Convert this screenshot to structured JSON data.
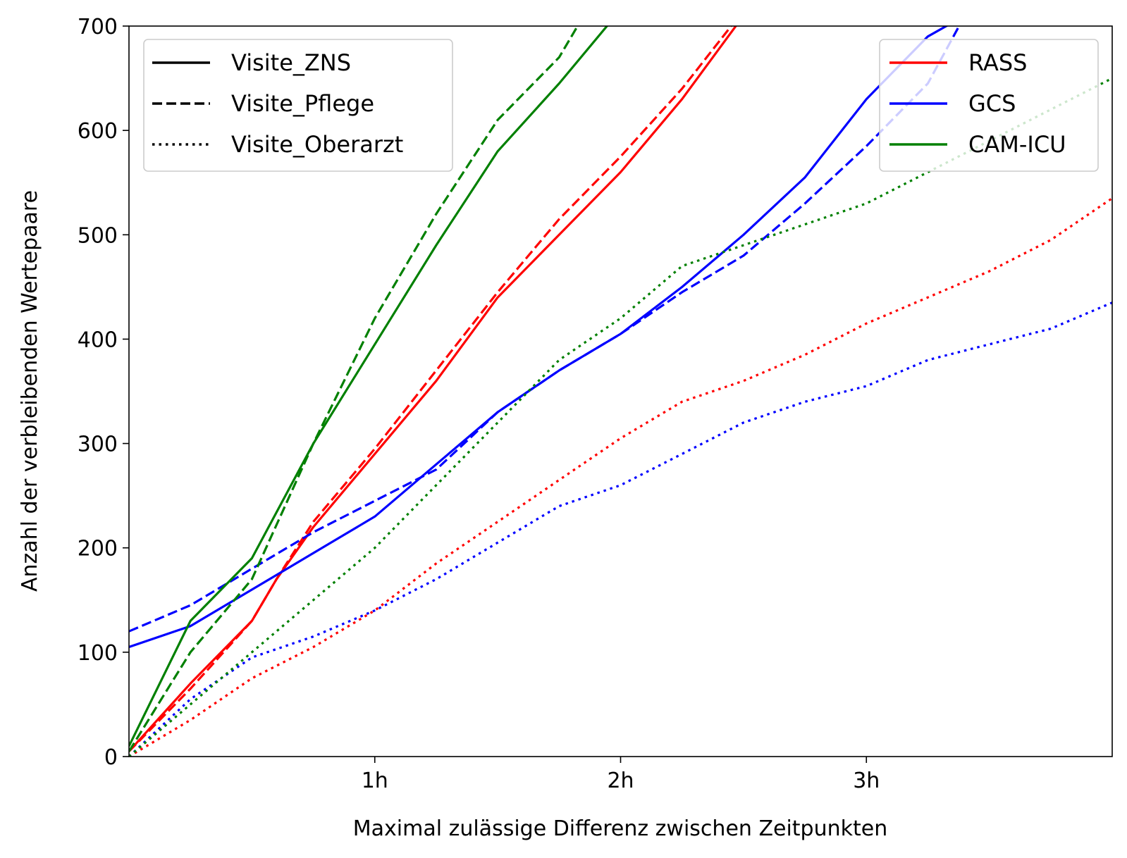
{
  "chart_data": {
    "type": "line",
    "xlabel": "Maximal zulässige Differenz zwischen Zeitpunkten",
    "ylabel": "Anzahl der verbleibenden Wertepaare",
    "xlim": [
      0,
      4
    ],
    "ylim": [
      0,
      700
    ],
    "x_unit": "hours",
    "xticks": [
      {
        "value": 1,
        "label": "1h"
      },
      {
        "value": 2,
        "label": "2h"
      },
      {
        "value": 3,
        "label": "3h"
      }
    ],
    "yticks": [
      0,
      100,
      200,
      300,
      400,
      500,
      600,
      700
    ],
    "grid": false,
    "legends": [
      {
        "placement": "top-left",
        "entries": [
          {
            "label": "Visite_ZNS",
            "dash": "solid"
          },
          {
            "label": "Visite_Pflege",
            "dash": "dashed"
          },
          {
            "label": "Visite_Oberarzt",
            "dash": "dotted"
          }
        ]
      },
      {
        "placement": "top-right",
        "entries": [
          {
            "label": "RASS",
            "color": "#ff0000"
          },
          {
            "label": "GCS",
            "color": "#0000ff"
          },
          {
            "label": "CAM-ICU",
            "color": "#008000"
          }
        ]
      }
    ],
    "series": [
      {
        "score": "RASS",
        "visit": "Visite_ZNS",
        "color": "#ff0000",
        "dash": "solid",
        "x": [
          0,
          0.25,
          0.5,
          0.6,
          0.75,
          1.0,
          1.25,
          1.5,
          1.75,
          2.0,
          2.25,
          2.5
        ],
        "y": [
          5,
          70,
          130,
          170,
          220,
          290,
          360,
          440,
          500,
          560,
          630,
          710
        ]
      },
      {
        "score": "RASS",
        "visit": "Visite_Pflege",
        "color": "#ff0000",
        "dash": "dashed",
        "x": [
          0,
          0.25,
          0.5,
          0.6,
          0.75,
          1.0,
          1.25,
          1.5,
          1.75,
          2.0,
          2.25,
          2.45
        ],
        "y": [
          5,
          65,
          130,
          170,
          225,
          295,
          370,
          445,
          515,
          575,
          640,
          700
        ]
      },
      {
        "score": "RASS",
        "visit": "Visite_Oberarzt",
        "color": "#ff0000",
        "dash": "dotted",
        "x": [
          0,
          0.25,
          0.5,
          0.75,
          1.0,
          1.25,
          1.5,
          1.75,
          2.0,
          2.25,
          2.5,
          2.75,
          3.0,
          3.25,
          3.5,
          3.75,
          4.0
        ],
        "y": [
          0,
          35,
          75,
          105,
          140,
          185,
          225,
          265,
          305,
          340,
          360,
          385,
          415,
          440,
          465,
          495,
          535
        ]
      },
      {
        "score": "GCS",
        "visit": "Visite_ZNS",
        "color": "#0000ff",
        "dash": "solid",
        "x": [
          0,
          0.25,
          0.5,
          0.75,
          1.0,
          1.25,
          1.5,
          1.75,
          2.0,
          2.25,
          2.5,
          2.75,
          3.0,
          3.25,
          3.4
        ],
        "y": [
          105,
          125,
          160,
          195,
          230,
          280,
          330,
          370,
          405,
          450,
          500,
          555,
          630,
          690,
          710
        ]
      },
      {
        "score": "GCS",
        "visit": "Visite_Pflege",
        "color": "#0000ff",
        "dash": "dashed",
        "x": [
          0,
          0.25,
          0.5,
          0.75,
          1.0,
          1.25,
          1.5,
          1.75,
          2.0,
          2.25,
          2.5,
          2.75,
          3.0,
          3.25,
          3.4
        ],
        "y": [
          120,
          145,
          180,
          215,
          245,
          275,
          330,
          370,
          405,
          445,
          480,
          530,
          585,
          645,
          710
        ]
      },
      {
        "score": "GCS",
        "visit": "Visite_Oberarzt",
        "color": "#0000ff",
        "dash": "dotted",
        "x": [
          0,
          0.25,
          0.5,
          0.75,
          1.0,
          1.25,
          1.5,
          1.75,
          2.0,
          2.25,
          2.5,
          2.75,
          3.0,
          3.25,
          3.5,
          3.75,
          4.0
        ],
        "y": [
          0,
          55,
          95,
          115,
          140,
          170,
          205,
          240,
          260,
          290,
          320,
          340,
          355,
          380,
          395,
          410,
          435
        ]
      },
      {
        "score": "CAM-ICU",
        "visit": "Visite_ZNS",
        "color": "#008000",
        "dash": "solid",
        "x": [
          0,
          0.25,
          0.5,
          0.75,
          1.0,
          1.25,
          1.5,
          1.75,
          1.98
        ],
        "y": [
          10,
          130,
          190,
          300,
          395,
          490,
          580,
          645,
          710
        ]
      },
      {
        "score": "CAM-ICU",
        "visit": "Visite_Pflege",
        "color": "#008000",
        "dash": "dashed",
        "x": [
          0,
          0.25,
          0.5,
          0.75,
          1.0,
          1.25,
          1.5,
          1.75,
          1.85
        ],
        "y": [
          5,
          100,
          170,
          300,
          420,
          520,
          610,
          670,
          710
        ]
      },
      {
        "score": "CAM-ICU",
        "visit": "Visite_Oberarzt",
        "color": "#008000",
        "dash": "dotted",
        "x": [
          0,
          0.25,
          0.5,
          0.75,
          1.0,
          1.25,
          1.5,
          1.75,
          2.0,
          2.25,
          2.5,
          2.75,
          3.0,
          3.25,
          3.5,
          3.75,
          4.0
        ],
        "y": [
          0,
          50,
          100,
          150,
          200,
          260,
          320,
          380,
          420,
          470,
          490,
          510,
          530,
          560,
          590,
          620,
          650
        ]
      }
    ]
  }
}
